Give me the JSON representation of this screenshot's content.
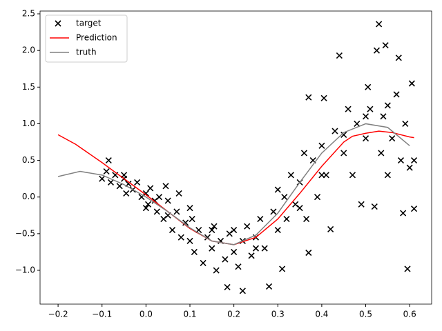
{
  "chart_data": {
    "type": "scatter_line",
    "xlim": [
      -0.241,
      0.65
    ],
    "ylim": [
      -1.461,
      2.538
    ],
    "xticks": [
      {
        "value": -0.2,
        "label": "−0.2"
      },
      {
        "value": -0.1,
        "label": "−0.1"
      },
      {
        "value": 0,
        "label": "0.0"
      },
      0.1,
      0.2,
      0.3,
      0.4,
      0.5,
      0.6
    ],
    "yticks": [
      {
        "value": -1,
        "label": "−1.0"
      },
      {
        "value": -0.5,
        "label": "−0.5"
      },
      {
        "value": 0,
        "label": "0.0"
      },
      0.5,
      {
        "value": 1,
        "label": "1.0"
      },
      1.5,
      {
        "value": 2,
        "label": "2.0"
      },
      2.5
    ],
    "legend": "upper left",
    "scatter": {
      "name": "target",
      "color": "#000000",
      "x": [
        -0.1,
        -0.09,
        -0.085,
        -0.08,
        -0.07,
        -0.06,
        -0.05,
        -0.045,
        -0.04,
        -0.03,
        -0.02,
        -0.01,
        0,
        0.005,
        0.01,
        0.02,
        0.025,
        0.03,
        0.04,
        0.045,
        0.05,
        0.06,
        0.07,
        0.075,
        0.08,
        0.09,
        0.1,
        0.105,
        0.11,
        0.12,
        0.13,
        0.14,
        0.15,
        0.155,
        0.16,
        0.17,
        0.18,
        0.185,
        0.19,
        0.2,
        0.21,
        0.22,
        0.22,
        0.23,
        0.24,
        0.25,
        0.26,
        0.27,
        0.28,
        0.29,
        0.3,
        0.31,
        0.315,
        0.32,
        0.33,
        0.34,
        0.35,
        0.36,
        0.365,
        0.37,
        0.37,
        0.38,
        0.39,
        0.4,
        0.405,
        0.41,
        0.42,
        0.43,
        0.44,
        0.45,
        0.46,
        0.47,
        0.48,
        0.49,
        0.5,
        0.505,
        0.51,
        0.52,
        0.525,
        0.53,
        0.535,
        0.54,
        0.545,
        0.55,
        0.56,
        0.57,
        0.575,
        0.58,
        0.585,
        0.59,
        0.595,
        0.6,
        0.605,
        0.61,
        0.61,
        0,
        0.1,
        0.2,
        0.3,
        0.4,
        0.5,
        0.55,
        0.45,
        0.35,
        0.25,
        0.15,
        0.05,
        -0.05
      ],
      "y": [
        0.25,
        0.35,
        0.5,
        0.2,
        0.3,
        0.15,
        0.25,
        0.05,
        0.18,
        0.1,
        0.2,
        0,
        0.05,
        -0.1,
        0.12,
        -0.05,
        -0.2,
        0,
        -0.3,
        0.15,
        -0.25,
        -0.45,
        -0.2,
        0.05,
        -0.55,
        -0.35,
        -0.6,
        -0.3,
        -0.75,
        -0.45,
        -0.9,
        -0.55,
        -0.7,
        -0.4,
        -1,
        -0.6,
        -0.85,
        -1.23,
        -0.5,
        -0.75,
        -0.95,
        -0.6,
        -1.28,
        -0.4,
        -0.8,
        -0.55,
        -0.3,
        -0.7,
        -1.22,
        -0.2,
        -0.45,
        -0.98,
        0,
        -0.3,
        0.3,
        -0.1,
        0.2,
        0.6,
        -0.3,
        1.36,
        -0.76,
        0.5,
        0,
        0.7,
        1.35,
        0.3,
        -0.44,
        0.9,
        1.93,
        0.6,
        1.2,
        0.3,
        1,
        -0.1,
        0.8,
        1.5,
        1.2,
        -0.13,
        2,
        2.36,
        0.6,
        1.1,
        2.07,
        0.3,
        0.8,
        1.4,
        1.9,
        0.5,
        -0.22,
        1,
        -0.98,
        0.4,
        1.55,
        0.5,
        -0.16,
        -0.15,
        -0.15,
        -0.45,
        0.1,
        0.3,
        1.1,
        1.25,
        0.85,
        -0.15,
        -0.7,
        -0.45,
        -0.05,
        0.3
      ]
    },
    "series": [
      {
        "name": "Prediction",
        "color": "#ff0000",
        "x": [
          -0.2,
          -0.16,
          -0.1,
          -0.05,
          0,
          0.05,
          0.1,
          0.15,
          0.2,
          0.25,
          0.3,
          0.35,
          0.4,
          0.45,
          0.47,
          0.5,
          0.53,
          0.56,
          0.6,
          0.61
        ],
        "values": [
          0.85,
          0.72,
          0.47,
          0.25,
          0.03,
          -0.2,
          -0.43,
          -0.6,
          -0.65,
          -0.55,
          -0.3,
          0.05,
          0.42,
          0.75,
          0.83,
          0.87,
          0.9,
          0.88,
          0.82,
          0.81
        ]
      },
      {
        "name": "truth",
        "color": "#808080",
        "x": [
          -0.2,
          -0.15,
          -0.1,
          -0.05,
          0,
          0.05,
          0.1,
          0.15,
          0.2,
          0.25,
          0.3,
          0.35,
          0.4,
          0.45,
          0.5,
          0.55,
          0.6
        ],
        "values": [
          0.28,
          0.35,
          0.3,
          0.17,
          0,
          -0.2,
          -0.42,
          -0.6,
          -0.65,
          -0.52,
          -0.22,
          0.2,
          0.6,
          0.88,
          1,
          0.95,
          0.7
        ]
      }
    ]
  }
}
